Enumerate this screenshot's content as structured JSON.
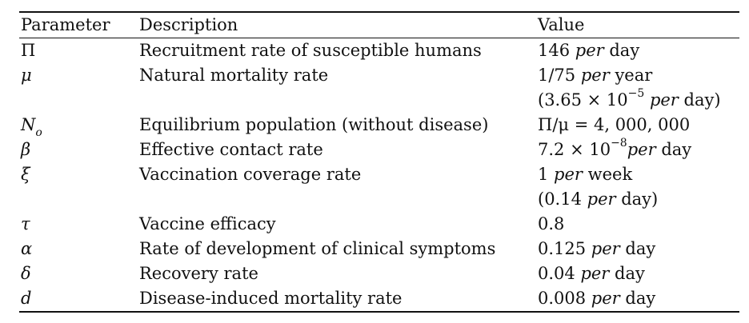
{
  "headers": [
    "Parameter",
    "Description",
    "Value"
  ],
  "rows": [
    {
      "param": "Π",
      "desc": "Recruitment rate of susceptible humans",
      "value_lines": [
        [
          "146",
          " per",
          " day"
        ]
      ]
    },
    {
      "param": "μ",
      "desc": "Natural mortality rate",
      "value_lines": [
        [
          "1/75",
          " per",
          " year"
        ],
        [
          "(3.65 × 10",
          "−5",
          " per",
          " day)"
        ]
      ]
    },
    {
      "param": "N",
      "param_sub": "o",
      "desc": "Equilibrium population (without disease)",
      "value_lines": [
        [
          "Π/μ = 4, 000, 000"
        ]
      ]
    },
    {
      "param": "β",
      "desc": "Effective contact rate",
      "value_lines": [
        [
          "7.2 × 10",
          "−8",
          "per",
          " day"
        ]
      ]
    },
    {
      "param": "ξ",
      "desc": "Vaccination coverage rate",
      "value_lines": [
        [
          "1",
          " per",
          " week"
        ],
        [
          "(0.14",
          " per",
          " day)"
        ]
      ]
    },
    {
      "param": "τ",
      "desc": "Vaccine efficacy",
      "value_lines": [
        [
          "0.8"
        ]
      ]
    },
    {
      "param": "α",
      "desc": "Rate of development of clinical symptoms",
      "value_lines": [
        [
          "0.125",
          " per",
          " day"
        ]
      ]
    },
    {
      "param": "δ",
      "desc": "Recovery rate",
      "value_lines": [
        [
          "0.04",
          " per",
          " day"
        ]
      ]
    },
    {
      "param": "d",
      "desc": "Disease-induced mortality rate",
      "value_lines": [
        [
          "0.008",
          " per",
          " day"
        ]
      ]
    }
  ]
}
